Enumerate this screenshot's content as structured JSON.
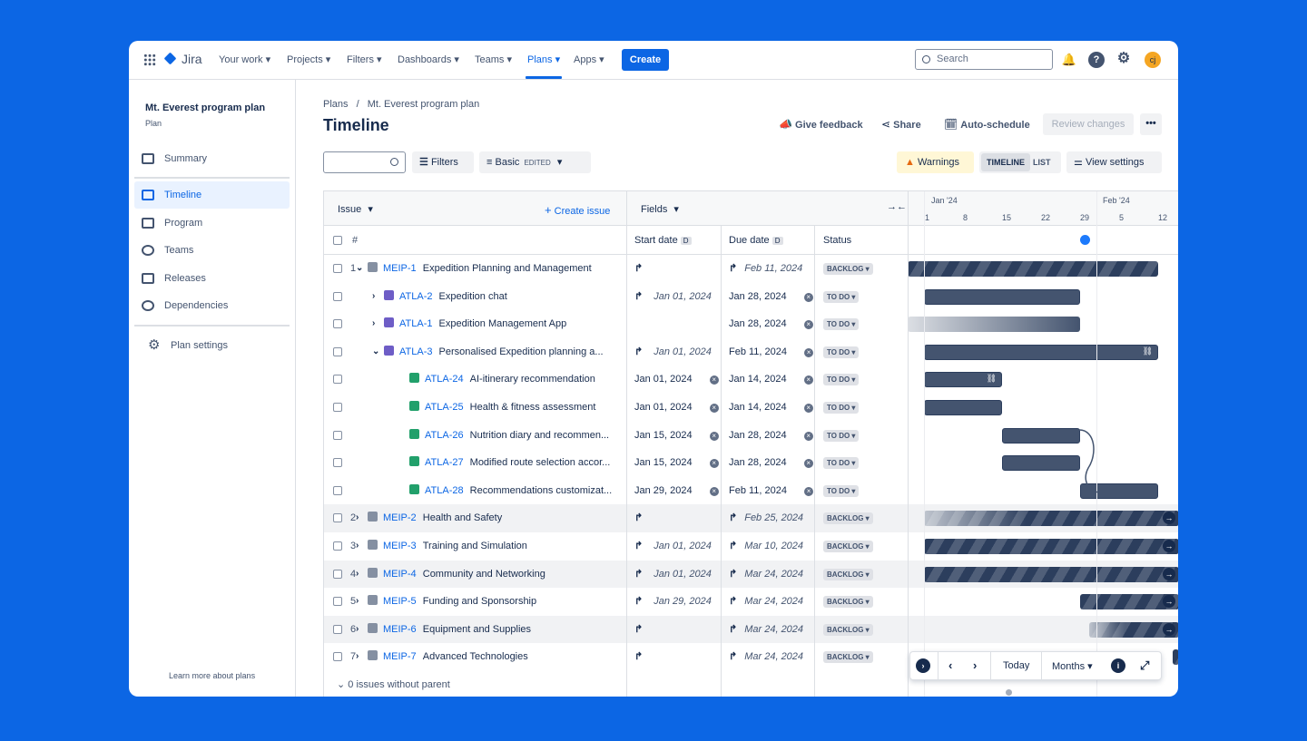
{
  "nav": {
    "logo": "Jira",
    "items": [
      "Your work",
      "Projects",
      "Filters",
      "Dashboards",
      "Teams",
      "Plans",
      "Apps"
    ],
    "create": "Create",
    "search_placeholder": "Search",
    "avatar": "cj"
  },
  "sidebar": {
    "title": "Mt. Everest program plan",
    "subtitle": "Plan",
    "items": [
      "Summary",
      "Timeline",
      "Program",
      "Teams",
      "Releases",
      "Dependencies"
    ],
    "settings": "Plan settings",
    "footer": "Learn more about plans"
  },
  "header": {
    "breadcrumb_root": "Plans",
    "breadcrumb_sep": "/",
    "breadcrumb_current": "Mt. Everest program plan",
    "title": "Timeline",
    "give_feedback": "Give feedback",
    "share": "Share",
    "auto_schedule": "Auto-schedule",
    "review_changes": "Review changes",
    "more": "•••"
  },
  "toolbar": {
    "filters": "Filters",
    "basic": "Basic",
    "edited": "EDITED",
    "warnings": "Warnings",
    "timeline": "TIMELINE",
    "list": "LIST",
    "view_settings": "View settings"
  },
  "table": {
    "issue_label": "Issue",
    "create_issue": "Create issue",
    "fields_label": "Fields",
    "hash": "#",
    "start_date": "Start date",
    "due_date": "Due date",
    "sort_badge": "D",
    "status": "Status",
    "footer": "0 issues without parent"
  },
  "timeline": {
    "months": [
      "Jan '24",
      "Feb '24"
    ],
    "days": [
      "1",
      "8",
      "15",
      "22",
      "29",
      "5",
      "12"
    ]
  },
  "rows": [
    {
      "num": "1",
      "key": "MEIP-1",
      "summary": "Expedition Planning and Management",
      "start": "",
      "due": "Feb 11, 2024",
      "status": "BACKLOG"
    },
    {
      "num": "",
      "key": "ATLA-2",
      "summary": "Expedition chat",
      "start": "Jan 01, 2024",
      "due": "Jan 28, 2024",
      "status": "TO DO"
    },
    {
      "num": "",
      "key": "ATLA-1",
      "summary": "Expedition Management App",
      "start": "",
      "due": "Jan 28, 2024",
      "status": "TO DO"
    },
    {
      "num": "",
      "key": "ATLA-3",
      "summary": "Personalised Expedition planning a...",
      "start": "Jan 01, 2024",
      "due": "Feb 11, 2024",
      "status": "TO DO"
    },
    {
      "num": "",
      "key": "ATLA-24",
      "summary": "AI-itinerary recommendation",
      "start": "Jan 01, 2024",
      "due": "Jan 14, 2024",
      "status": "TO DO"
    },
    {
      "num": "",
      "key": "ATLA-25",
      "summary": "Health & fitness assessment",
      "start": "Jan 01, 2024",
      "due": "Jan 14, 2024",
      "status": "TO DO"
    },
    {
      "num": "",
      "key": "ATLA-26",
      "summary": "Nutrition diary and recommen...",
      "start": "Jan 15, 2024",
      "due": "Jan 28, 2024",
      "status": "TO DO"
    },
    {
      "num": "",
      "key": "ATLA-27",
      "summary": "Modified route selection accor...",
      "start": "Jan 15, 2024",
      "due": "Jan 28, 2024",
      "status": "TO DO"
    },
    {
      "num": "",
      "key": "ATLA-28",
      "summary": "Recommendations customizat...",
      "start": "Jan 29, 2024",
      "due": "Feb 11, 2024",
      "status": "TO DO"
    },
    {
      "num": "2",
      "key": "MEIP-2",
      "summary": "Health and Safety",
      "start": "",
      "due": "Feb 25, 2024",
      "status": "BACKLOG"
    },
    {
      "num": "3",
      "key": "MEIP-3",
      "summary": "Training and Simulation",
      "start": "Jan 01, 2024",
      "due": "Mar 10, 2024",
      "status": "BACKLOG"
    },
    {
      "num": "4",
      "key": "MEIP-4",
      "summary": "Community and Networking",
      "start": "Jan 01, 2024",
      "due": "Mar 24, 2024",
      "status": "BACKLOG"
    },
    {
      "num": "5",
      "key": "MEIP-5",
      "summary": "Funding and Sponsorship",
      "start": "Jan 29, 2024",
      "due": "Mar 24, 2024",
      "status": "BACKLOG"
    },
    {
      "num": "6",
      "key": "MEIP-6",
      "summary": "Equipment and Supplies",
      "start": "",
      "due": "Mar 24, 2024",
      "status": "BACKLOG"
    },
    {
      "num": "7",
      "key": "MEIP-7",
      "summary": "Advanced Technologies",
      "start": "",
      "due": "Mar 24, 2024",
      "status": "BACKLOG"
    }
  ],
  "controls": {
    "today": "Today",
    "months": "Months"
  },
  "colors": {
    "accent": "#0c66e4",
    "epic": "#8590a2",
    "feature": "#6e5dc6",
    "story": "#22a06b",
    "warning": "#fff7d6",
    "bar": "#44546f"
  }
}
